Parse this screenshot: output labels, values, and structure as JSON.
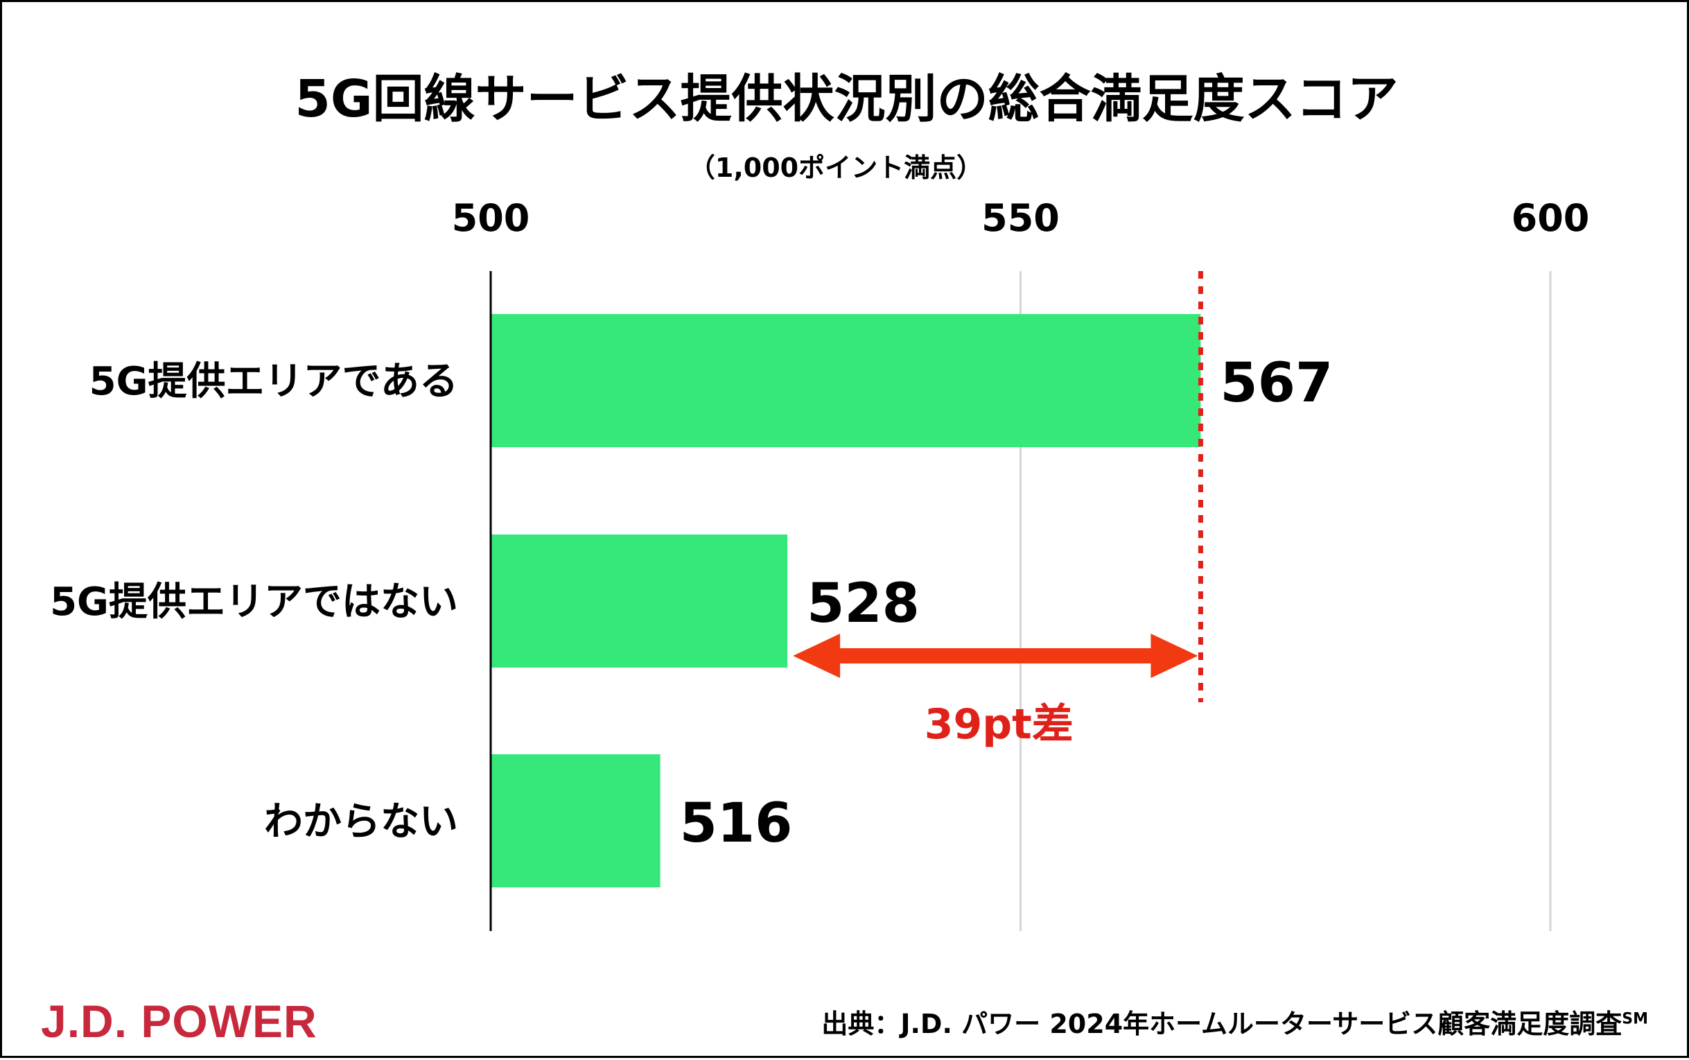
{
  "chart_data": {
    "type": "bar",
    "orientation": "horizontal",
    "title": "5G回線サービス提供状況別の総合満足度スコア",
    "subtitle": "（1,000ポイント満点）",
    "categories": [
      "5G提供エリアである",
      "5G提供エリアではない",
      "わからない"
    ],
    "values": [
      567,
      528,
      516
    ],
    "xlim": [
      500,
      600
    ],
    "xticks": [
      500,
      550,
      600
    ],
    "xtick_labels": [
      "500",
      "550",
      "600"
    ],
    "grid": true,
    "axis_position": "top",
    "annotation": {
      "text": "39pt差",
      "from_value": 528,
      "to_value": 567,
      "reference_line_value": 567
    }
  },
  "colors": {
    "bar": "#36e87a",
    "annotation": "#e0211a",
    "arrow": "#f23a12",
    "logo": "#c8283c",
    "grid": "#d4d4d4"
  },
  "footer": {
    "logo_text": "J.D. POWER",
    "source_text": "出典：J.D. パワー 2024年ホームルーターサービス顧客満足度調査",
    "source_mark": "SM"
  }
}
